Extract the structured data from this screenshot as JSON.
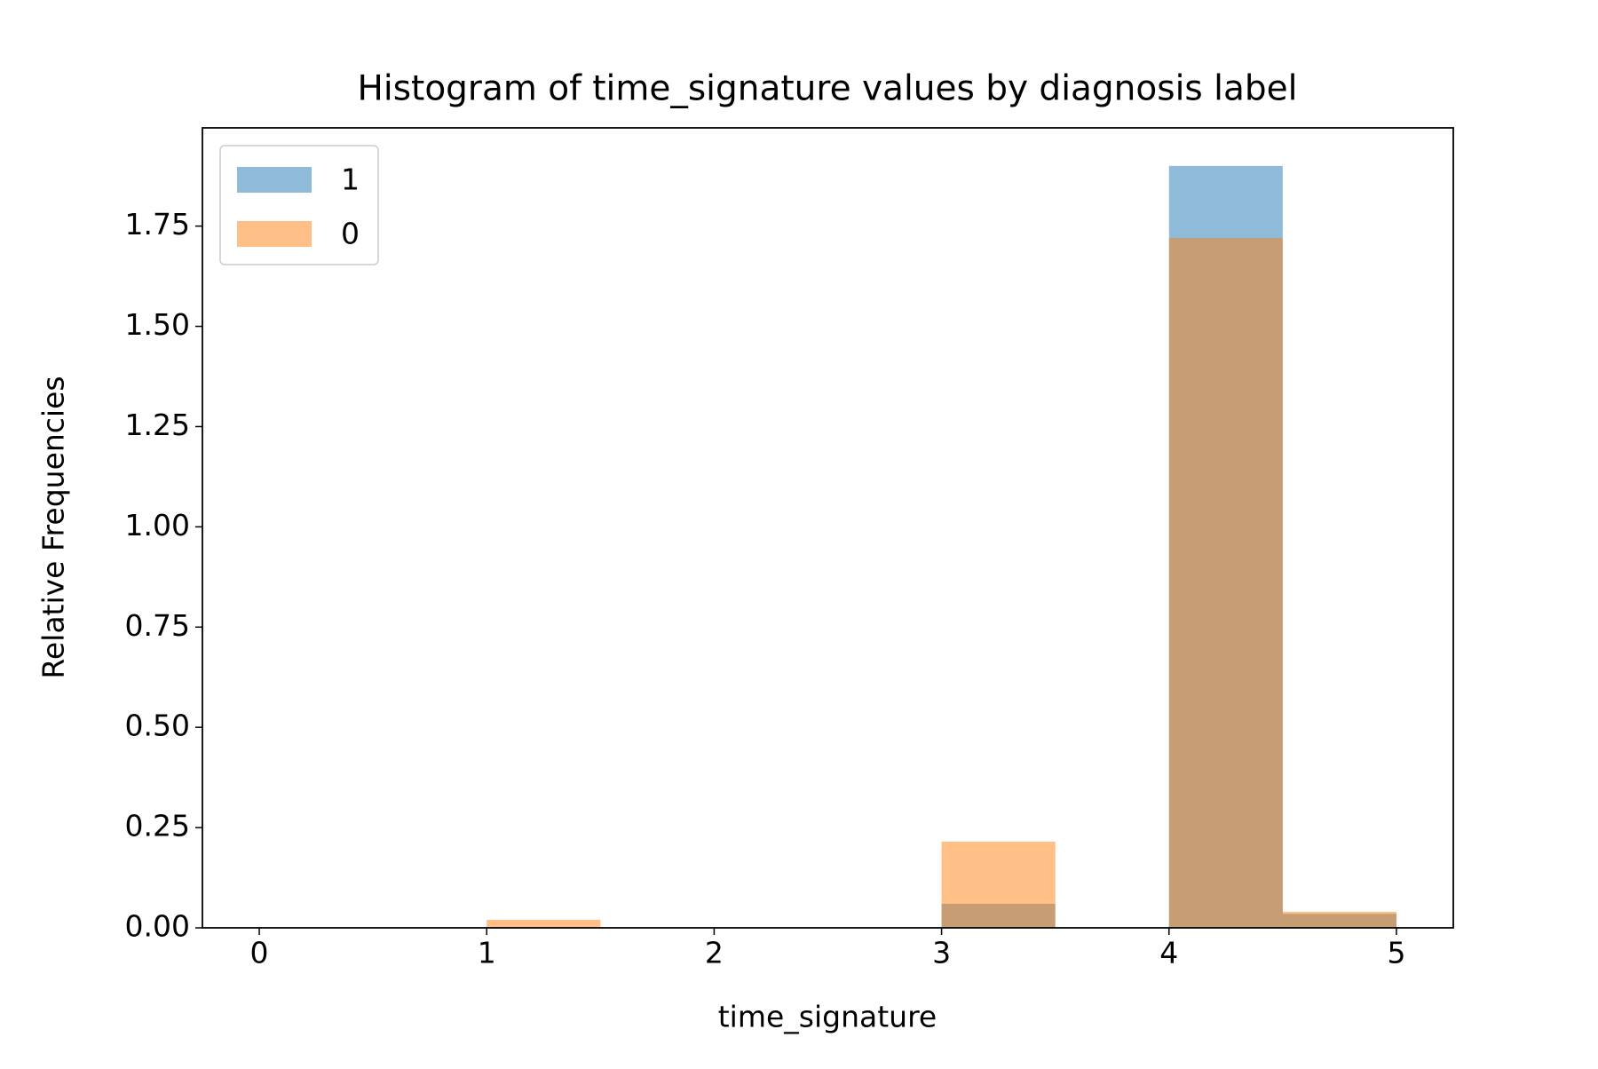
{
  "chart_data": {
    "type": "histogram",
    "title": "Histogram of time_signature values by diagnosis label",
    "x_label": "time_signature",
    "y_label": "Relative Frequencies",
    "bins": [
      0,
      0.5,
      1,
      1.5,
      2,
      2.5,
      3,
      3.5,
      4,
      4.5,
      5
    ],
    "series": [
      {
        "name": "1",
        "color": "#1f77b4",
        "opacity": 0.5,
        "values": [
          0,
          0,
          0,
          0,
          0,
          0,
          0.06,
          0,
          1.9,
          0.035
        ]
      },
      {
        "name": "0",
        "color": "#ff7f0e",
        "opacity": 0.5,
        "values": [
          0,
          0,
          0.02,
          0,
          0,
          0,
          0.215,
          0,
          1.72,
          0.04
        ]
      }
    ],
    "xlim": [
      -0.25,
      5.25
    ],
    "ylim": [
      0,
      1.995
    ],
    "xticks": [
      0,
      1,
      2,
      3,
      4,
      5
    ],
    "yticks": [
      {
        "value": 0,
        "label": "0.00"
      },
      {
        "value": 0.25,
        "label": "0.25"
      },
      {
        "value": 0.5,
        "label": "0.50"
      },
      {
        "value": 0.75,
        "label": "0.75"
      },
      {
        "value": 1,
        "label": "1.00"
      },
      {
        "value": 1.25,
        "label": "1.25"
      },
      {
        "value": 1.5,
        "label": "1.50"
      },
      {
        "value": 1.75,
        "label": "1.75"
      }
    ],
    "grid": false,
    "legend_position": "upper-left"
  }
}
